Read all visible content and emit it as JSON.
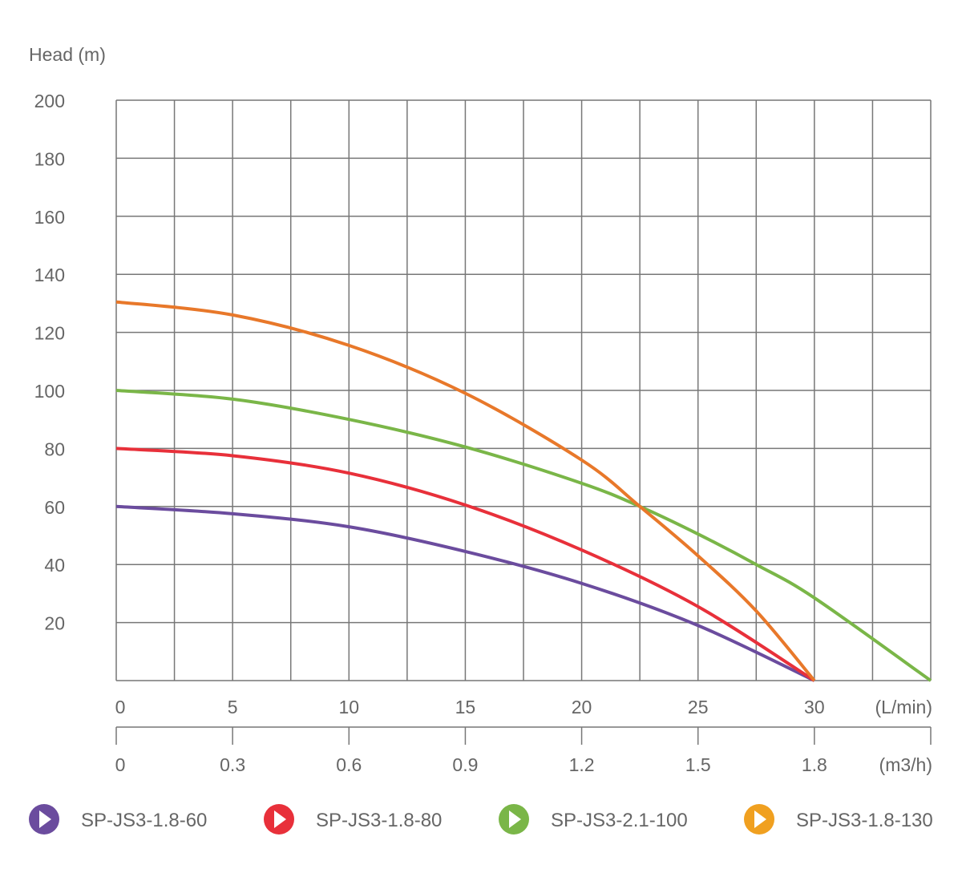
{
  "chart_data": {
    "type": "line",
    "title": "",
    "ylabel": "Head (m)",
    "xlabel": "(L/min)",
    "x2label": "(m3/h)",
    "xlim": [
      0,
      35
    ],
    "ylim": [
      0,
      200
    ],
    "grid": true,
    "yticks": [
      "20",
      "40",
      "60",
      "80",
      "100",
      "120",
      "140",
      "160",
      "180",
      "200"
    ],
    "ytick_values": [
      20,
      40,
      60,
      80,
      100,
      120,
      140,
      160,
      180,
      200
    ],
    "xticks": [
      "0",
      "5",
      "10",
      "15",
      "20",
      "25",
      "30"
    ],
    "xtick_values": [
      0,
      5,
      10,
      15,
      20,
      25,
      30
    ],
    "x2ticks": [
      "0",
      "0.3",
      "0.6",
      "0.9",
      "1.2",
      "1.5",
      "1.8"
    ],
    "x2tick_values": [
      0,
      5,
      10,
      15,
      20,
      25,
      30
    ],
    "legend_position": "bottom",
    "series": [
      {
        "name": "SP-JS3-1.8-60",
        "color": "#6b4c9e",
        "legend_color": "#6b4c9e",
        "x": [
          0,
          5,
          10,
          15,
          20,
          25,
          30
        ],
        "y": [
          60,
          57.5,
          53,
          44.5,
          33.5,
          19,
          0
        ]
      },
      {
        "name": "SP-JS3-1.8-80",
        "color": "#e8303a",
        "legend_color": "#e8303a",
        "x": [
          0,
          5,
          10,
          15,
          20,
          25,
          30
        ],
        "y": [
          80,
          77.5,
          71.5,
          60.5,
          45,
          25.5,
          0
        ]
      },
      {
        "name": "SP-JS3-2.1-100",
        "color": "#7ab648",
        "legend_color": "#7ab648",
        "x": [
          0,
          5,
          10,
          15,
          20,
          22.5,
          25,
          27.5,
          30,
          35
        ],
        "y": [
          100,
          97,
          90,
          80.5,
          68,
          60,
          50.5,
          40,
          28.5,
          0
        ]
      },
      {
        "name": "SP-JS3-1.8-130",
        "color": "#e8782a",
        "legend_color": "#f0a020",
        "x": [
          0,
          5,
          10,
          15,
          20,
          22.5,
          25,
          27.5,
          30
        ],
        "y": [
          130.5,
          126,
          115.5,
          99,
          76,
          60,
          43,
          24,
          0
        ]
      }
    ]
  }
}
